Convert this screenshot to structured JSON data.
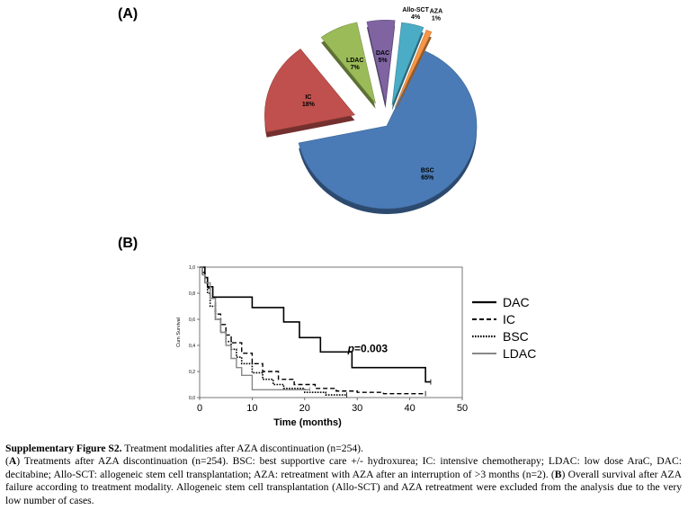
{
  "panels": {
    "a_label": "(A)",
    "b_label": "(B)"
  },
  "chart_data": [
    {
      "type": "pie",
      "slices": [
        {
          "label": "BSC",
          "value_label": "65%",
          "value": 65,
          "color": "#4a7bb7"
        },
        {
          "label": "IC",
          "value_label": "18%",
          "value": 18,
          "color": "#c0504d"
        },
        {
          "label": "LDAC",
          "value_label": "7%",
          "value": 7,
          "color": "#9bbb59"
        },
        {
          "label": "DAC",
          "value_label": "5%",
          "value": 5,
          "color": "#8064a2"
        },
        {
          "label": "Allo-SCT",
          "value_label": "4%",
          "value": 4,
          "color": "#4bacc6"
        },
        {
          "label": "AZA",
          "value_label": "1%",
          "value": 1,
          "color": "#f79646"
        }
      ]
    },
    {
      "type": "line",
      "xlabel": "Time (months)",
      "ylabel": "Cum Survival",
      "xlim": [
        0,
        50
      ],
      "ylim": [
        0,
        1.0
      ],
      "xticks": [
        "0",
        "10",
        "20",
        "30",
        "40",
        "50"
      ],
      "yticks": [
        "0,0",
        "0,2",
        "0,4",
        "0,6",
        "0,8",
        "1,0"
      ],
      "annotation": {
        "prefix": "p",
        "value": "=0.003"
      },
      "legend_position": "right",
      "series": [
        {
          "name": "DAC",
          "dash": "solid",
          "color": "#000000",
          "width": 1.6,
          "x": [
            0,
            1,
            1.5,
            2.5,
            3,
            10,
            13,
            16,
            19,
            23,
            26,
            29,
            43,
            44
          ],
          "y": [
            1.0,
            0.92,
            0.85,
            0.77,
            0.77,
            0.69,
            0.69,
            0.58,
            0.46,
            0.35,
            0.35,
            0.23,
            0.12,
            0.12
          ]
        },
        {
          "name": "IC",
          "dash": "dashed",
          "color": "#000000",
          "width": 1.4,
          "x": [
            0,
            0.5,
            1,
            1.5,
            2,
            3,
            4,
            5,
            6,
            8,
            10,
            12,
            15,
            18,
            22,
            26,
            30,
            35,
            43
          ],
          "y": [
            1.0,
            0.96,
            0.9,
            0.84,
            0.76,
            0.64,
            0.56,
            0.48,
            0.42,
            0.34,
            0.26,
            0.2,
            0.14,
            0.1,
            0.07,
            0.05,
            0.04,
            0.03,
            0.03
          ]
        },
        {
          "name": "BSC",
          "dash": "dotted",
          "color": "#000000",
          "width": 1.6,
          "x": [
            0,
            0.5,
            1,
            1.5,
            2,
            3,
            4,
            5,
            6,
            7,
            8,
            10,
            12,
            14,
            16,
            20,
            24,
            28
          ],
          "y": [
            1.0,
            0.95,
            0.88,
            0.8,
            0.7,
            0.6,
            0.5,
            0.43,
            0.37,
            0.31,
            0.26,
            0.19,
            0.14,
            0.1,
            0.07,
            0.04,
            0.02,
            0.02
          ]
        },
        {
          "name": "LDAC",
          "dash": "solid",
          "color": "#888888",
          "width": 1.4,
          "x": [
            0,
            0.5,
            1,
            2,
            3,
            4,
            5,
            6,
            7,
            8,
            10,
            12,
            18,
            21
          ],
          "y": [
            1.0,
            0.94,
            0.88,
            0.76,
            0.6,
            0.5,
            0.4,
            0.3,
            0.23,
            0.17,
            0.06,
            0.06,
            0.06,
            0.06
          ]
        }
      ]
    }
  ],
  "caption": {
    "title": "Supplementary Figure S2.",
    "title_text": " Treatment modalities after AZA discontinuation (n=254).",
    "a_open": "(",
    "a_letter": "A",
    "a_text": ") Treatments after AZA discontinuation (n=254). BSC: best supportive care +/- hydroxurea; IC: intensive chemotherapy; LDAC: low dose AraC, DAC: decitabine; Allo-SCT: allogeneic stem cell transplantation; AZA: retreatment with AZA after an interruption of >3 months (n=2). (",
    "b_letter": "B",
    "b_text": ") Overall survival after AZA failure according to treatment modality. Allogeneic stem cell transplantation (Allo-SCT) and AZA retreatment were excluded from the analysis due to the very low number of cases."
  }
}
